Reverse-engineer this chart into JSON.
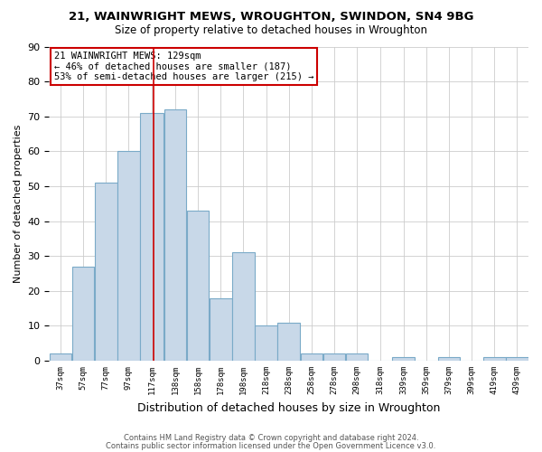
{
  "title1": "21, WAINWRIGHT MEWS, WROUGHTON, SWINDON, SN4 9BG",
  "title2": "Size of property relative to detached houses in Wroughton",
  "xlabel": "Distribution of detached houses by size in Wroughton",
  "ylabel": "Number of detached properties",
  "bar_edges": [
    37,
    57,
    77,
    97,
    117,
    138,
    158,
    178,
    198,
    218,
    238,
    258,
    278,
    298,
    318,
    339,
    359,
    379,
    399,
    419,
    439,
    459
  ],
  "bar_heights": [
    2,
    27,
    51,
    60,
    71,
    72,
    43,
    18,
    31,
    10,
    11,
    2,
    2,
    2,
    0,
    1,
    0,
    1,
    0,
    1,
    1
  ],
  "bar_color": "#c8d8e8",
  "bar_edge_color": "#7aaac8",
  "vline_x": 129,
  "vline_color": "#cc0000",
  "annotation_text": "21 WAINWRIGHT MEWS: 129sqm\n← 46% of detached houses are smaller (187)\n53% of semi-detached houses are larger (215) →",
  "annotation_box_color": "#ffffff",
  "annotation_box_edge": "#cc0000",
  "ylim": [
    0,
    90
  ],
  "yticks": [
    0,
    10,
    20,
    30,
    40,
    50,
    60,
    70,
    80,
    90
  ],
  "tick_labels": [
    "37sqm",
    "57sqm",
    "77sqm",
    "97sqm",
    "117sqm",
    "138sqm",
    "158sqm",
    "178sqm",
    "198sqm",
    "218sqm",
    "238sqm",
    "258sqm",
    "278sqm",
    "298sqm",
    "318sqm",
    "339sqm",
    "359sqm",
    "379sqm",
    "399sqm",
    "419sqm",
    "439sqm"
  ],
  "footer1": "Contains HM Land Registry data © Crown copyright and database right 2024.",
  "footer2": "Contains public sector information licensed under the Open Government Licence v3.0.",
  "background_color": "#ffffff",
  "grid_color": "#cccccc",
  "title1_fontsize": 9.5,
  "title2_fontsize": 8.5,
  "xlabel_fontsize": 9,
  "ylabel_fontsize": 8,
  "xtick_fontsize": 6.5,
  "ytick_fontsize": 8,
  "annotation_fontsize": 7.5,
  "footer_fontsize": 6
}
